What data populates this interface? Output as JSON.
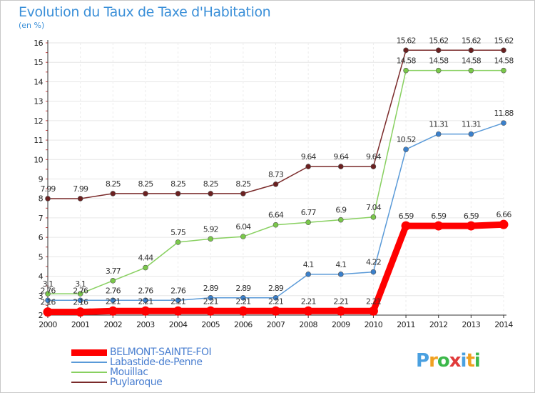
{
  "title": "Evolution du Taux de Taxe d'Habitation",
  "unit": "(en %)",
  "logo": {
    "letters": [
      "P",
      "r",
      "o",
      "x",
      "i",
      "t",
      "i"
    ],
    "colors": [
      "#4aa0e0",
      "#f0a020",
      "#3cb84a",
      "#e03a3a",
      "#4aa0e0",
      "#f0a020",
      "#3cb84a"
    ]
  },
  "chart_data": {
    "type": "line",
    "x": [
      2000,
      2001,
      2002,
      2003,
      2004,
      2005,
      2006,
      2007,
      2008,
      2009,
      2010,
      2011,
      2012,
      2013,
      2014
    ],
    "ylim": [
      2,
      16
    ],
    "yticks": [
      2,
      3,
      4,
      5,
      6,
      7,
      8,
      9,
      10,
      11,
      12,
      13,
      14,
      15,
      16
    ],
    "grid": true,
    "legend_position": "bottom-left",
    "series": [
      {
        "name": "Puylaroque",
        "color": "#7a2a2a",
        "point_color": "#6b2020",
        "width": 1.5,
        "marker": 3.5,
        "values": [
          7.99,
          7.99,
          8.25,
          8.25,
          8.25,
          8.25,
          8.25,
          8.73,
          9.64,
          9.64,
          9.64,
          15.62,
          15.62,
          15.62,
          15.62
        ],
        "labels": [
          "7.99",
          "7.99",
          "8.25",
          "8.25",
          "8.25",
          "8.25",
          "8.25",
          "8.73",
          "9.64",
          "9.64",
          "9.64",
          "15.62",
          "15.62",
          "15.62",
          "15.62"
        ]
      },
      {
        "name": "Mouillac",
        "color": "#88d060",
        "point_color": "#7ac84a",
        "width": 1.5,
        "marker": 3.5,
        "values": [
          3.1,
          3.1,
          3.77,
          4.44,
          5.75,
          5.92,
          6.04,
          6.64,
          6.77,
          6.9,
          7.04,
          14.58,
          14.58,
          14.58,
          14.58
        ],
        "labels": [
          "3.1",
          "3.1",
          "3.77",
          "4.44",
          "5.75",
          "5.92",
          "6.04",
          "6.64",
          "6.77",
          "6.9",
          "7.04",
          "14.58",
          "14.58",
          "14.58",
          "14.58"
        ]
      },
      {
        "name": "Labastide-de-Penne",
        "color": "#5a9ad8",
        "point_color": "#3a80cc",
        "width": 1.5,
        "marker": 3.5,
        "values": [
          2.76,
          2.76,
          2.76,
          2.76,
          2.76,
          2.89,
          2.89,
          2.89,
          4.1,
          4.1,
          4.22,
          10.52,
          11.31,
          11.31,
          11.88
        ],
        "labels": [
          "2.76",
          "2.76",
          "2.76",
          "2.76",
          "2.76",
          "2.89",
          "2.89",
          "2.89",
          "4.1",
          "4.1",
          "4.22",
          "10.52",
          "11.31",
          "11.31",
          "11.88"
        ]
      },
      {
        "name": "BELMONT-SAINTE-FOI",
        "color": "#ff0000",
        "point_color": "#ff0000",
        "width": 9,
        "marker": 6.5,
        "values": [
          2.16,
          2.16,
          2.21,
          2.21,
          2.21,
          2.21,
          2.21,
          2.21,
          2.21,
          2.21,
          2.21,
          6.59,
          6.59,
          6.59,
          6.66
        ],
        "labels": [
          "2.16",
          "2.16",
          "2.21",
          "2.21",
          "2.21",
          "2.21",
          "2.21",
          "2.21",
          "2.21",
          "2.21",
          "2.21",
          "6.59",
          "6.59",
          "6.59",
          "6.66"
        ]
      }
    ],
    "legend_order": [
      "BELMONT-SAINTE-FOI",
      "Labastide-de-Penne",
      "Mouillac",
      "Puylaroque"
    ]
  }
}
